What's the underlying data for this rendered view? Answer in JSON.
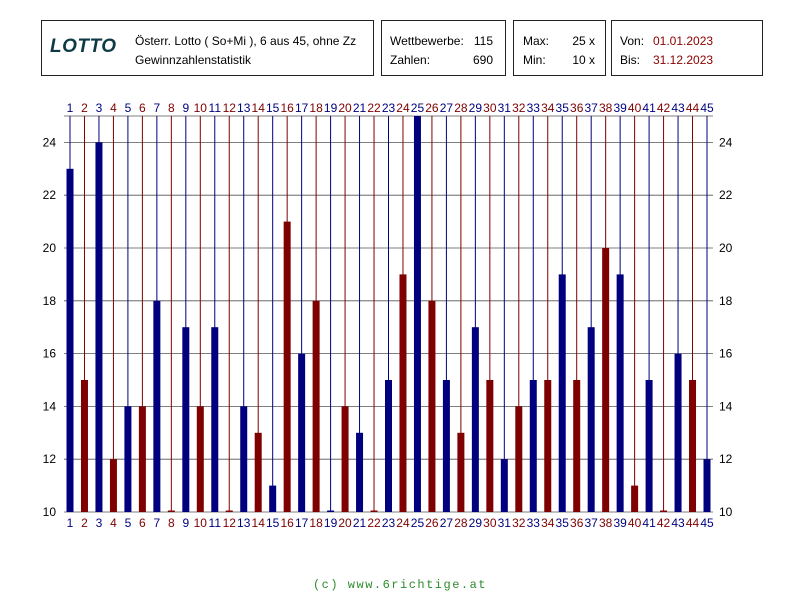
{
  "header": {
    "logo": "LOTTO",
    "description_line1": "Österr. Lotto ( So+Mi ), 6 aus 45, ohne Zz",
    "description_line2": "Gewinnzahlenstatistik",
    "stats": {
      "wettbewerbe_label": "Wettbewerbe:",
      "wettbewerbe_value": "115",
      "zahlen_label": "Zahlen:",
      "zahlen_value": "690"
    },
    "range": {
      "max_label": "Max:",
      "max_value": "25 x",
      "min_label": "Min:",
      "min_value": "10 x"
    },
    "dates": {
      "von_label": "Von:",
      "von_value": "01.01.2023",
      "bis_label": "Bis:",
      "bis_value": "31.12.2023"
    }
  },
  "colors": {
    "odd": "#00007f",
    "even": "#7f0000",
    "grid": "#555555"
  },
  "chart_data": {
    "type": "bar",
    "categories": [
      "1",
      "2",
      "3",
      "4",
      "5",
      "6",
      "7",
      "8",
      "9",
      "10",
      "11",
      "12",
      "13",
      "14",
      "15",
      "16",
      "17",
      "18",
      "19",
      "20",
      "21",
      "22",
      "23",
      "24",
      "25",
      "26",
      "27",
      "28",
      "29",
      "30",
      "31",
      "32",
      "33",
      "34",
      "35",
      "36",
      "37",
      "38",
      "39",
      "40",
      "41",
      "42",
      "43",
      "44",
      "45"
    ],
    "values": [
      23,
      15,
      24,
      12,
      14,
      14,
      18,
      10,
      17,
      14,
      17,
      10,
      14,
      13,
      11,
      21,
      16,
      18,
      10,
      14,
      13,
      10,
      15,
      19,
      25,
      18,
      15,
      13,
      17,
      15,
      12,
      14,
      15,
      15,
      19,
      15,
      17,
      20,
      19,
      11,
      15,
      10,
      16,
      15,
      12
    ],
    "ylim": [
      10,
      25
    ],
    "yticks": [
      "10",
      "12",
      "14",
      "16",
      "18",
      "20",
      "22",
      "24"
    ],
    "grid": true
  },
  "footer": "(c) www.6richtige.at"
}
